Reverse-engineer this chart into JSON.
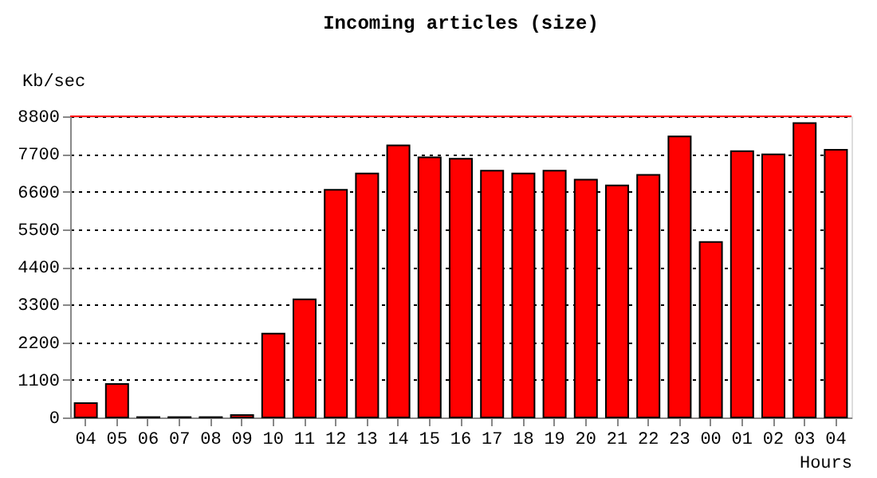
{
  "chart_data": {
    "type": "bar",
    "title": "Incoming articles (size)",
    "ylabel": "Kb/sec",
    "xlabel": "Hours",
    "categories": [
      "04",
      "05",
      "06",
      "07",
      "08",
      "09",
      "10",
      "11",
      "12",
      "13",
      "14",
      "15",
      "16",
      "17",
      "18",
      "19",
      "20",
      "21",
      "22",
      "23",
      "00",
      "01",
      "02",
      "03",
      "04"
    ],
    "values": [
      420,
      980,
      10,
      10,
      10,
      70,
      2450,
      3450,
      6650,
      7130,
      7950,
      7600,
      7560,
      7210,
      7130,
      7210,
      6950,
      6780,
      7090,
      8210,
      5130,
      7780,
      7690,
      8600,
      7820
    ],
    "color": "#ff0000",
    "ylim": [
      0,
      8800
    ],
    "yticks": [
      0,
      1100,
      2200,
      3300,
      4400,
      5500,
      6600,
      7700,
      8800
    ],
    "grid": "y",
    "ref_lines": [
      {
        "axis": "y",
        "value": 8800,
        "color": "#ff0000"
      }
    ]
  }
}
